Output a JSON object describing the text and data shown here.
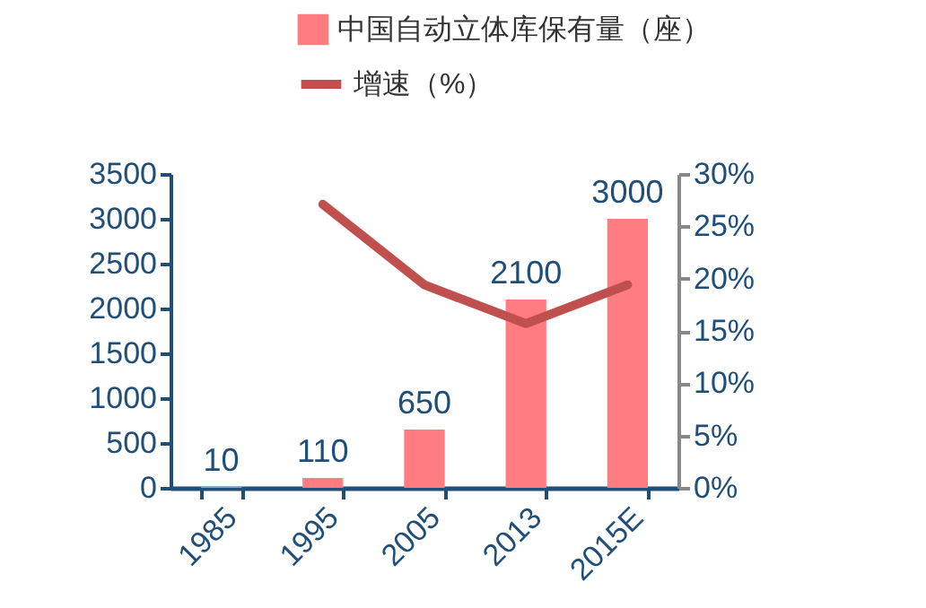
{
  "chart_data": {
    "type": "bar",
    "categories": [
      "1985",
      "1995",
      "2005",
      "2013",
      "2015E"
    ],
    "series": [
      {
        "name": "中国自动立体库保有量（座）",
        "color": "#ff7c80",
        "values": [
          10,
          110,
          650,
          2100,
          3000
        ],
        "value_labels": [
          "10",
          "110",
          "650",
          "2100",
          "3000"
        ]
      },
      {
        "name": "增速（%）",
        "type": "line",
        "axis": "y2",
        "color": "#c0504d",
        "values": [
          null,
          27.1,
          19.4,
          15.7,
          19.4
        ]
      }
    ],
    "ylim": [
      0,
      3500
    ],
    "yticks": [
      0,
      500,
      1000,
      1500,
      2000,
      2500,
      3000,
      3500
    ],
    "y2lim": [
      0,
      30
    ],
    "y2ticks": [
      {
        "value": 0,
        "label": "0%"
      },
      {
        "value": 5,
        "label": "5%"
      },
      {
        "value": 10,
        "label": "10%"
      },
      {
        "value": 15,
        "label": "15%"
      },
      {
        "value": 20,
        "label": "20%"
      },
      {
        "value": 25,
        "label": "25%"
      },
      {
        "value": 30,
        "label": "30%"
      }
    ],
    "legend": "top",
    "grid": false,
    "marker": "none",
    "line_style": "solid"
  }
}
